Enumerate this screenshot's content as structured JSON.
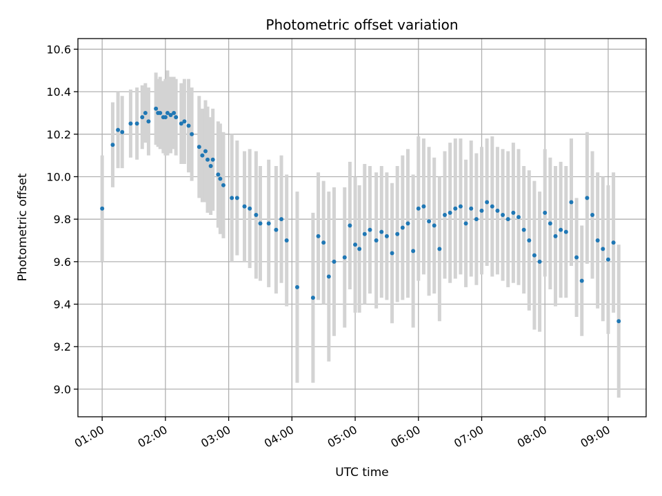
{
  "chart_data": {
    "type": "scatter",
    "title": "Photometric offset variation",
    "xlabel": "UTC time",
    "ylabel": "Photometric offset",
    "x_ticks": [
      "01:00",
      "02:00",
      "03:00",
      "04:00",
      "05:00",
      "06:00",
      "07:00",
      "08:00",
      "09:00"
    ],
    "y_ticks": [
      "9.0",
      "9.2",
      "9.4",
      "9.6",
      "9.8",
      "10.0",
      "10.2",
      "10.4",
      "10.6"
    ],
    "xlim": [
      "00:37",
      "09:36"
    ],
    "ylim": [
      8.87,
      10.65
    ],
    "grid": true,
    "colors": {
      "points": "#1f77b4",
      "error_bars": "#d3d3d3"
    },
    "series": [
      {
        "x": [
          "01:00",
          "01:10",
          "01:15",
          "01:19",
          "01:27",
          "01:33",
          "01:38",
          "01:41",
          "01:44",
          "01:51",
          "01:53",
          "01:55",
          "01:58",
          "02:00",
          "02:02",
          "02:05",
          "02:08",
          "02:10",
          "02:15",
          "02:18",
          "02:22",
          "02:25",
          "02:32",
          "02:35",
          "02:38",
          "02:40",
          "02:43",
          "02:45",
          "02:50",
          "02:52",
          "02:55",
          "03:03",
          "03:08",
          "03:15",
          "03:20",
          "03:26",
          "03:30",
          "03:38",
          "03:45",
          "03:50",
          "03:55",
          "04:05",
          "04:20",
          "04:25",
          "04:30",
          "04:35",
          "04:40",
          "04:50",
          "04:55",
          "05:00",
          "05:04",
          "05:09",
          "05:14",
          "05:20",
          "05:25",
          "05:30",
          "05:35",
          "05:40",
          "05:45",
          "05:50",
          "05:55",
          "06:00",
          "06:05",
          "06:10",
          "06:15",
          "06:20",
          "06:25",
          "06:30",
          "06:35",
          "06:40",
          "06:45",
          "06:50",
          "06:55",
          "07:00",
          "07:05",
          "07:10",
          "07:15",
          "07:20",
          "07:25",
          "07:30",
          "07:35",
          "07:40",
          "07:45",
          "07:50",
          "07:55",
          "08:00",
          "08:05",
          "08:10",
          "08:15",
          "08:20",
          "08:25",
          "08:30",
          "08:35",
          "08:40",
          "08:45",
          "08:50",
          "08:55",
          "09:00",
          "09:05",
          "09:10"
        ],
        "y": [
          9.85,
          10.15,
          10.22,
          10.21,
          10.25,
          10.25,
          10.28,
          10.3,
          10.26,
          10.32,
          10.3,
          10.3,
          10.28,
          10.28,
          10.3,
          10.29,
          10.3,
          10.28,
          10.25,
          10.26,
          10.24,
          10.2,
          10.14,
          10.1,
          10.12,
          10.08,
          10.05,
          10.08,
          10.01,
          9.99,
          9.96,
          9.9,
          9.9,
          9.86,
          9.85,
          9.82,
          9.78,
          9.78,
          9.75,
          9.8,
          9.7,
          9.48,
          9.43,
          9.72,
          9.69,
          9.53,
          9.6,
          9.62,
          9.77,
          9.68,
          9.66,
          9.73,
          9.75,
          9.7,
          9.74,
          9.72,
          9.64,
          9.73,
          9.76,
          9.78,
          9.65,
          9.85,
          9.86,
          9.79,
          9.77,
          9.66,
          9.82,
          9.83,
          9.85,
          9.86,
          9.78,
          9.85,
          9.8,
          9.84,
          9.88,
          9.86,
          9.84,
          9.82,
          9.8,
          9.83,
          9.81,
          9.75,
          9.7,
          9.63,
          9.6,
          9.83,
          9.78,
          9.72,
          9.75,
          9.74,
          9.88,
          9.62,
          9.51,
          9.9,
          9.82,
          9.7,
          9.66,
          9.61,
          9.69,
          9.32
        ],
        "err": [
          0.25,
          0.2,
          0.18,
          0.17,
          0.16,
          0.17,
          0.15,
          0.14,
          0.16,
          0.17,
          0.16,
          0.17,
          0.17,
          0.18,
          0.2,
          0.18,
          0.17,
          0.18,
          0.19,
          0.2,
          0.22,
          0.22,
          0.24,
          0.22,
          0.24,
          0.25,
          0.23,
          0.24,
          0.25,
          0.26,
          0.25,
          0.3,
          0.27,
          0.26,
          0.28,
          0.3,
          0.27,
          0.3,
          0.3,
          0.3,
          0.31,
          0.45,
          0.4,
          0.3,
          0.29,
          0.4,
          0.35,
          0.33,
          0.3,
          0.32,
          0.3,
          0.33,
          0.3,
          0.32,
          0.31,
          0.3,
          0.33,
          0.32,
          0.34,
          0.35,
          0.36,
          0.34,
          0.32,
          0.35,
          0.32,
          0.34,
          0.3,
          0.33,
          0.33,
          0.32,
          0.3,
          0.32,
          0.31,
          0.3,
          0.3,
          0.33,
          0.3,
          0.31,
          0.32,
          0.33,
          0.32,
          0.3,
          0.33,
          0.35,
          0.33,
          0.3,
          0.31,
          0.33,
          0.32,
          0.31,
          0.3,
          0.28,
          0.26,
          0.31,
          0.3,
          0.32,
          0.34,
          0.35,
          0.33,
          0.36
        ]
      }
    ]
  }
}
